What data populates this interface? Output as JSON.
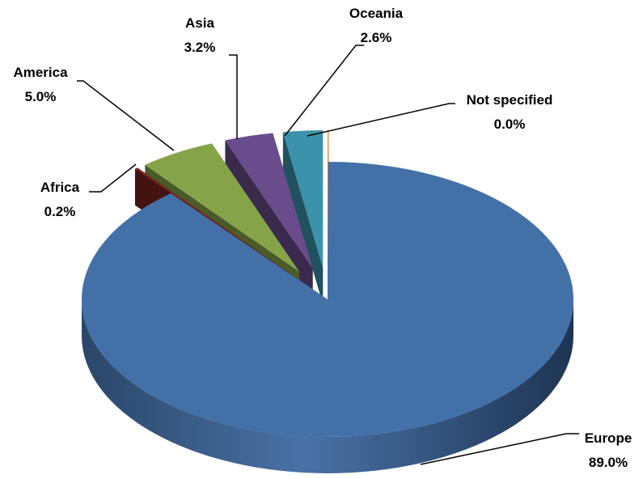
{
  "chart_data": {
    "type": "pie",
    "title": "",
    "style": "3d-exploded",
    "categories": [
      "Europe",
      "Africa",
      "America",
      "Asia",
      "Oceania",
      "Not specified"
    ],
    "values": [
      89.0,
      0.2,
      5.0,
      3.2,
      2.6,
      0.0
    ],
    "value_labels": [
      "89.0%",
      "0.2%",
      "5.0%",
      "3.2%",
      "2.6%",
      "0.0%"
    ],
    "colors": [
      "#4470A8",
      "#7A2320",
      "#86A34A",
      "#6A4C8C",
      "#3B93AB",
      "#E0772C"
    ],
    "legend": "none"
  }
}
